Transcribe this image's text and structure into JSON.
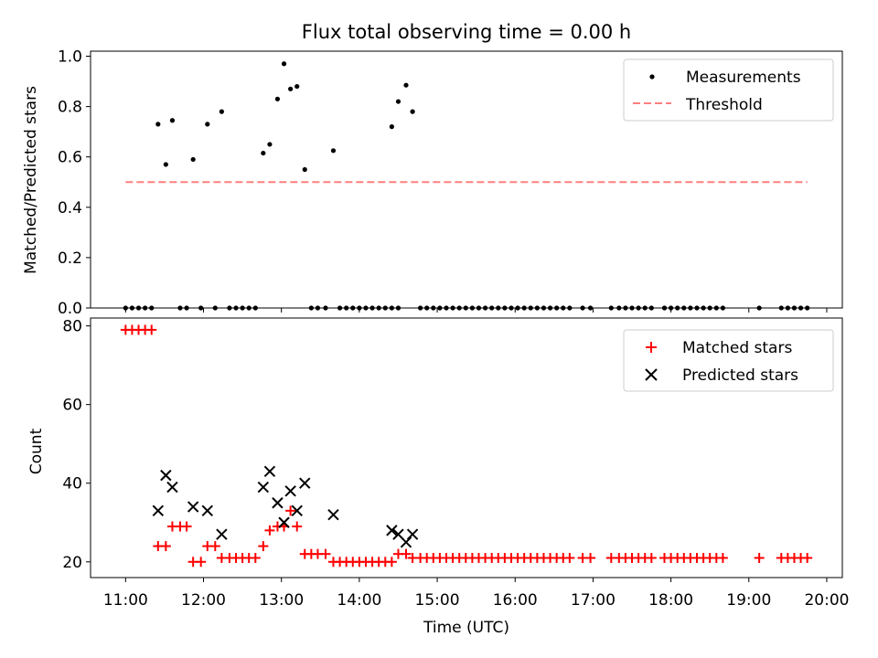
{
  "chart_data": [
    {
      "type": "scatter",
      "title": "Flux total observing time = 0.00 h",
      "xlabel": "",
      "ylabel": "Matched/Predicted stars",
      "ylim": [
        0,
        1.02
      ],
      "xlim": [
        "10:33",
        "20:12"
      ],
      "yticks": [
        "0.0",
        "0.2",
        "0.4",
        "0.6",
        "0.8",
        "1.0"
      ],
      "legend_position": "top-right",
      "grid": false,
      "series": [
        {
          "name": "Measurements",
          "marker": "dot",
          "color": "#000000",
          "points": [
            [
              "11:00",
              0
            ],
            [
              "11:05",
              0
            ],
            [
              "11:10",
              0
            ],
            [
              "11:15",
              0
            ],
            [
              "11:20",
              0
            ],
            [
              "11:25",
              0.73
            ],
            [
              "11:31",
              0.57
            ],
            [
              "11:36",
              0.745
            ],
            [
              "11:42",
              0
            ],
            [
              "11:47",
              0
            ],
            [
              "11:52",
              0.59
            ],
            [
              "11:58",
              0
            ],
            [
              "12:03",
              0.73
            ],
            [
              "12:09",
              0
            ],
            [
              "12:14",
              0.78
            ],
            [
              "12:20",
              0
            ],
            [
              "12:25",
              0
            ],
            [
              "12:30",
              0
            ],
            [
              "12:35",
              0
            ],
            [
              "12:40",
              0
            ],
            [
              "12:46",
              0.615
            ],
            [
              "12:51",
              0.65
            ],
            [
              "12:57",
              0.83
            ],
            [
              "13:02",
              0.97
            ],
            [
              "13:07",
              0.87
            ],
            [
              "13:12",
              0.88
            ],
            [
              "13:18",
              0.55
            ],
            [
              "13:23",
              0
            ],
            [
              "13:28",
              0
            ],
            [
              "13:34",
              0
            ],
            [
              "13:40",
              0.625
            ],
            [
              "13:45",
              0
            ],
            [
              "13:50",
              0
            ],
            [
              "13:55",
              0
            ],
            [
              "14:00",
              0
            ],
            [
              "14:05",
              0
            ],
            [
              "14:10",
              0
            ],
            [
              "14:15",
              0
            ],
            [
              "14:20",
              0
            ],
            [
              "14:25",
              0
            ],
            [
              "14:30",
              0
            ],
            [
              "14:25",
              0.72
            ],
            [
              "14:30",
              0.82
            ],
            [
              "14:36",
              0.885
            ],
            [
              "14:41",
              0.78
            ],
            [
              "14:47",
              0
            ],
            [
              "14:52",
              0
            ],
            [
              "14:57",
              0
            ],
            [
              "15:02",
              0
            ],
            [
              "15:07",
              0
            ],
            [
              "15:12",
              0
            ],
            [
              "15:17",
              0
            ],
            [
              "15:22",
              0
            ],
            [
              "15:27",
              0
            ],
            [
              "15:32",
              0
            ],
            [
              "15:37",
              0
            ],
            [
              "15:42",
              0
            ],
            [
              "15:47",
              0
            ],
            [
              "15:52",
              0
            ],
            [
              "15:57",
              0
            ],
            [
              "16:02",
              0
            ],
            [
              "16:07",
              0
            ],
            [
              "16:12",
              0
            ],
            [
              "16:17",
              0
            ],
            [
              "16:22",
              0
            ],
            [
              "16:27",
              0
            ],
            [
              "16:32",
              0
            ],
            [
              "16:37",
              0
            ],
            [
              "16:42",
              0
            ],
            [
              "16:52",
              0
            ],
            [
              "16:58",
              0
            ],
            [
              "17:14",
              0
            ],
            [
              "17:20",
              0
            ],
            [
              "17:25",
              0
            ],
            [
              "17:30",
              0
            ],
            [
              "17:35",
              0
            ],
            [
              "17:40",
              0
            ],
            [
              "17:45",
              0
            ],
            [
              "17:55",
              0
            ],
            [
              "18:00",
              0
            ],
            [
              "18:05",
              0
            ],
            [
              "18:10",
              0
            ],
            [
              "18:15",
              0
            ],
            [
              "18:20",
              0
            ],
            [
              "18:25",
              0
            ],
            [
              "18:30",
              0
            ],
            [
              "18:35",
              0
            ],
            [
              "18:40",
              0
            ],
            [
              "19:08",
              0
            ],
            [
              "19:25",
              0
            ],
            [
              "19:30",
              0
            ],
            [
              "19:35",
              0
            ],
            [
              "19:40",
              0
            ],
            [
              "19:45",
              0
            ]
          ]
        },
        {
          "name": "Threshold",
          "type": "line",
          "style": "dashed",
          "color": "#ff7f7f",
          "points": [
            [
              "11:00",
              0.5
            ],
            [
              "19:45",
              0.5
            ]
          ]
        }
      ]
    },
    {
      "type": "scatter",
      "title": "",
      "xlabel": "Time (UTC)",
      "ylabel": "Count",
      "ylim": [
        16,
        82
      ],
      "xlim": [
        "10:33",
        "20:12"
      ],
      "yticks": [
        "20",
        "40",
        "60",
        "80"
      ],
      "xticks": [
        "11:00",
        "12:00",
        "13:00",
        "14:00",
        "15:00",
        "16:00",
        "17:00",
        "18:00",
        "19:00",
        "20:00"
      ],
      "legend_position": "top-right",
      "grid": false,
      "series": [
        {
          "name": "Matched stars",
          "marker": "plus",
          "color": "#ff0000",
          "points": [
            [
              "11:00",
              79
            ],
            [
              "11:05",
              79
            ],
            [
              "11:10",
              79
            ],
            [
              "11:15",
              79
            ],
            [
              "11:20",
              79
            ],
            [
              "11:25",
              24
            ],
            [
              "11:31",
              24
            ],
            [
              "11:36",
              29
            ],
            [
              "11:42",
              29
            ],
            [
              "11:47",
              29
            ],
            [
              "11:52",
              20
            ],
            [
              "11:58",
              20
            ],
            [
              "12:03",
              24
            ],
            [
              "12:09",
              24
            ],
            [
              "12:14",
              21
            ],
            [
              "12:20",
              21
            ],
            [
              "12:25",
              21
            ],
            [
              "12:30",
              21
            ],
            [
              "12:35",
              21
            ],
            [
              "12:40",
              21
            ],
            [
              "12:46",
              24
            ],
            [
              "12:51",
              28
            ],
            [
              "12:57",
              29
            ],
            [
              "13:02",
              29
            ],
            [
              "13:07",
              33
            ],
            [
              "13:12",
              29
            ],
            [
              "13:18",
              22
            ],
            [
              "13:23",
              22
            ],
            [
              "13:28",
              22
            ],
            [
              "13:34",
              22
            ],
            [
              "13:40",
              20
            ],
            [
              "13:45",
              20
            ],
            [
              "13:50",
              20
            ],
            [
              "13:55",
              20
            ],
            [
              "14:00",
              20
            ],
            [
              "14:05",
              20
            ],
            [
              "14:10",
              20
            ],
            [
              "14:15",
              20
            ],
            [
              "14:20",
              20
            ],
            [
              "14:25",
              20
            ],
            [
              "14:30",
              22
            ],
            [
              "14:36",
              22
            ],
            [
              "14:41",
              21
            ],
            [
              "14:47",
              21
            ],
            [
              "14:52",
              21
            ],
            [
              "14:57",
              21
            ],
            [
              "15:02",
              21
            ],
            [
              "15:07",
              21
            ],
            [
              "15:12",
              21
            ],
            [
              "15:17",
              21
            ],
            [
              "15:22",
              21
            ],
            [
              "15:27",
              21
            ],
            [
              "15:32",
              21
            ],
            [
              "15:37",
              21
            ],
            [
              "15:42",
              21
            ],
            [
              "15:47",
              21
            ],
            [
              "15:52",
              21
            ],
            [
              "15:57",
              21
            ],
            [
              "16:02",
              21
            ],
            [
              "16:07",
              21
            ],
            [
              "16:12",
              21
            ],
            [
              "16:17",
              21
            ],
            [
              "16:22",
              21
            ],
            [
              "16:27",
              21
            ],
            [
              "16:32",
              21
            ],
            [
              "16:37",
              21
            ],
            [
              "16:42",
              21
            ],
            [
              "16:52",
              21
            ],
            [
              "16:58",
              21
            ],
            [
              "17:14",
              21
            ],
            [
              "17:20",
              21
            ],
            [
              "17:25",
              21
            ],
            [
              "17:30",
              21
            ],
            [
              "17:35",
              21
            ],
            [
              "17:40",
              21
            ],
            [
              "17:45",
              21
            ],
            [
              "17:55",
              21
            ],
            [
              "18:00",
              21
            ],
            [
              "18:05",
              21
            ],
            [
              "18:10",
              21
            ],
            [
              "18:15",
              21
            ],
            [
              "18:20",
              21
            ],
            [
              "18:25",
              21
            ],
            [
              "18:30",
              21
            ],
            [
              "18:35",
              21
            ],
            [
              "18:40",
              21
            ],
            [
              "19:08",
              21
            ],
            [
              "19:25",
              21
            ],
            [
              "19:30",
              21
            ],
            [
              "19:35",
              21
            ],
            [
              "19:40",
              21
            ],
            [
              "19:45",
              21
            ]
          ]
        },
        {
          "name": "Predicted stars",
          "marker": "x",
          "color": "#000000",
          "points": [
            [
              "11:25",
              33
            ],
            [
              "11:31",
              42
            ],
            [
              "11:36",
              39
            ],
            [
              "11:52",
              34
            ],
            [
              "12:03",
              33
            ],
            [
              "12:14",
              27
            ],
            [
              "12:46",
              39
            ],
            [
              "12:51",
              43
            ],
            [
              "12:57",
              35
            ],
            [
              "13:02",
              30
            ],
            [
              "13:07",
              38
            ],
            [
              "13:12",
              33
            ],
            [
              "13:18",
              40
            ],
            [
              "13:40",
              32
            ],
            [
              "14:25",
              28
            ],
            [
              "14:30",
              27
            ],
            [
              "14:36",
              25
            ],
            [
              "14:41",
              27
            ]
          ]
        }
      ]
    }
  ]
}
